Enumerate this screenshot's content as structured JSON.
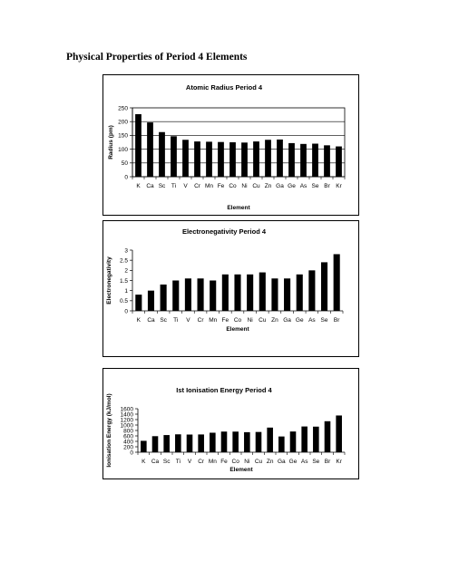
{
  "page": {
    "title": "Physical Properties of Period 4 Elements"
  },
  "chart_data": [
    {
      "type": "bar",
      "title": "Atomic Radius Period 4",
      "xlabel": "Element",
      "ylabel": "Radius (pm)",
      "categories": [
        "K",
        "Ca",
        "Sc",
        "Ti",
        "V",
        "Cr",
        "Mn",
        "Fe",
        "Co",
        "Ni",
        "Cu",
        "Zn",
        "Ga",
        "Ge",
        "As",
        "Se",
        "Br",
        "Kr"
      ],
      "values": [
        227,
        197,
        162,
        147,
        134,
        128,
        127,
        126,
        125,
        124,
        128,
        134,
        135,
        122,
        119,
        120,
        114,
        110
      ],
      "ylim": [
        0,
        250
      ],
      "yticks": [
        0,
        50,
        100,
        150,
        200,
        250
      ],
      "grid": true,
      "legend": "none",
      "bar_color": "#000000"
    },
    {
      "type": "bar",
      "title": "Electronegativity Period 4",
      "xlabel": "Element",
      "ylabel": "Electronegativity",
      "categories": [
        "K",
        "Ca",
        "Sc",
        "Ti",
        "V",
        "Cr",
        "Mn",
        "Fe",
        "Co",
        "Ni",
        "Cu",
        "Zn",
        "Ga",
        "Ge",
        "As",
        "Se",
        "Br"
      ],
      "values": [
        0.8,
        1.0,
        1.3,
        1.5,
        1.6,
        1.6,
        1.5,
        1.8,
        1.8,
        1.8,
        1.9,
        1.6,
        1.6,
        1.8,
        2.0,
        2.4,
        2.8
      ],
      "ylim": [
        0,
        3
      ],
      "yticks": [
        0,
        0.5,
        1,
        1.5,
        2,
        2.5,
        3
      ],
      "grid": false,
      "legend": "none",
      "bar_color": "#000000"
    },
    {
      "type": "bar",
      "title": "Ist Ionisation Energy Period 4",
      "xlabel": "Element",
      "ylabel": "Ionisation Energy (kJ/mol)",
      "categories": [
        "K",
        "Ca",
        "Sc",
        "Ti",
        "V",
        "Cr",
        "Mn",
        "Fe",
        "Co",
        "Ni",
        "Cu",
        "Zn",
        "Ga",
        "Ge",
        "As",
        "Se",
        "Br",
        "Kr"
      ],
      "values": [
        419,
        590,
        631,
        658,
        650,
        653,
        717,
        759,
        758,
        737,
        745,
        906,
        579,
        762,
        947,
        941,
        1140,
        1351
      ],
      "ylim": [
        0,
        1600
      ],
      "yticks": [
        0,
        200,
        400,
        600,
        800,
        1000,
        1200,
        1400,
        1600
      ],
      "grid": false,
      "legend": "none",
      "bar_color": "#000000"
    }
  ]
}
